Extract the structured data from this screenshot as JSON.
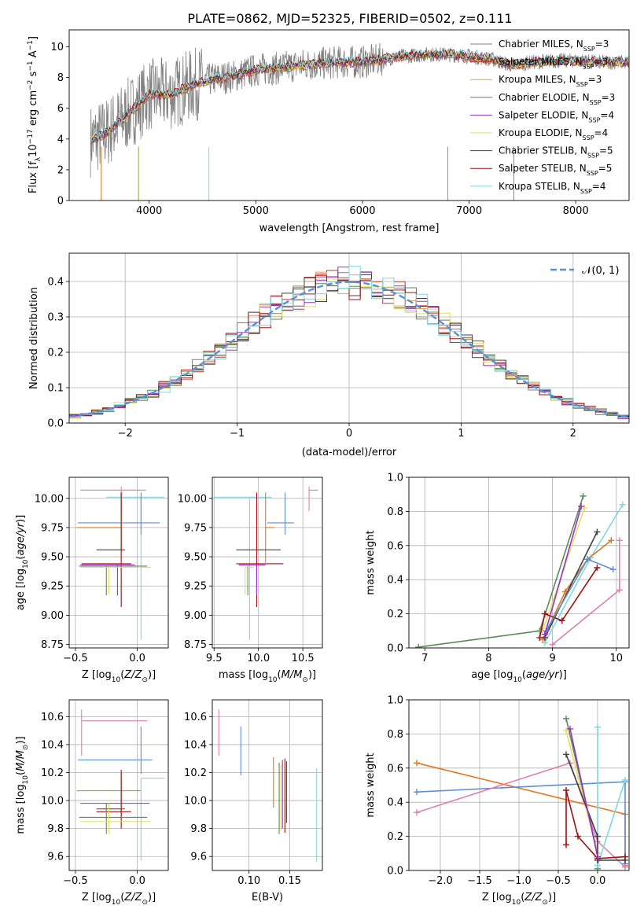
{
  "figure": {
    "title": "PLATE=0862, MJD=52325, FIBERID=0502, z=0.111"
  },
  "models": [
    {
      "name": "Chabrier MILES",
      "nssp": "3",
      "color": "#808080"
    },
    {
      "name": "Salpeter MILES",
      "nssp": "3",
      "color": "#c0392b"
    },
    {
      "name": "Kroupa MILES",
      "nssp": "3",
      "color": "#e6a03c"
    },
    {
      "name": "Chabrier ELODIE",
      "nssp": "3",
      "color": "#5a8a5a"
    },
    {
      "name": "Salpeter ELODIE",
      "nssp": "4",
      "color": "#9b30c8"
    },
    {
      "name": "Kroupa ELODIE",
      "nssp": "4",
      "color": "#e0e060"
    },
    {
      "name": "Chabrier STELIB",
      "nssp": "5",
      "color": "#404040"
    },
    {
      "name": "Salpeter STELIB",
      "nssp": "5",
      "color": "#a01010"
    },
    {
      "name": "Kroupa STELIB",
      "nssp": "4",
      "color": "#7fd8e0"
    }
  ],
  "chart_data": [
    {
      "id": "spectrum",
      "type": "line",
      "xlabel": "wavelength [Angstrom, rest frame]",
      "ylabel_parts": [
        "Flux [f",
        "λ",
        "10",
        "−17",
        " erg cm",
        "−2",
        " s",
        "−1",
        " A",
        "−1",
        "]"
      ],
      "xlim": [
        3250,
        8500
      ],
      "ylim": [
        0,
        11.1
      ],
      "xticks": [
        4000,
        5000,
        6000,
        7000,
        8000
      ],
      "yticks": [
        0,
        2,
        4,
        6,
        8,
        10
      ],
      "legend_placement": "right",
      "continuum": {
        "x": [
          3450,
          3600,
          3800,
          4000,
          4200,
          4400,
          4600,
          4800,
          5000,
          5200,
          5400,
          5600,
          5800,
          6000,
          6200,
          6400,
          6600,
          6800,
          7000,
          7200,
          7400,
          7600,
          7800,
          8000,
          8200,
          8400
        ],
        "y": [
          3.9,
          4.4,
          5.6,
          6.9,
          6.9,
          7.5,
          7.9,
          8.1,
          8.5,
          8.6,
          8.8,
          8.9,
          9.0,
          9.0,
          9.2,
          9.4,
          9.5,
          9.5,
          9.4,
          9.2,
          8.8,
          9.0,
          9.1,
          9.1,
          9.0,
          9.0
        ]
      }
    },
    {
      "id": "residuals",
      "type": "line",
      "xlabel": "(data-model)/error",
      "ylabel": "Normed distribution",
      "xlim": [
        -2.5,
        2.5
      ],
      "ylim": [
        0,
        0.48
      ],
      "xticks": [
        -2,
        -1,
        0,
        1,
        2
      ],
      "yticks": [
        0.0,
        0.1,
        0.2,
        0.3,
        0.4
      ],
      "grid": true,
      "legend_label": "𝒩(0, 1)",
      "legend_placement": "top-right",
      "gaussian_color": "#5b8fd6"
    },
    {
      "id": "age_vs_Z",
      "type": "scatter",
      "xlabel": "Z [log10(Z/Z⊙)]",
      "ylabel": "age  [log10(age/yr)]",
      "xlim": [
        -0.55,
        0.25
      ],
      "ylim": [
        8.72,
        10.18
      ],
      "xticks": [
        -0.5,
        0.0
      ],
      "yticks": [
        8.75,
        9.0,
        9.25,
        9.5,
        9.75,
        10.0
      ],
      "grid": true,
      "points": [
        {
          "x": 0.03,
          "y": 10.01,
          "xerr": [
            0.28,
            0.19
          ],
          "yerr": [
            1.22,
            0.0
          ],
          "c": "#7fd8e0"
        },
        {
          "x": -0.13,
          "y": 10.07,
          "xerr": [
            0.33,
            0.2
          ],
          "yerr": [
            0.18,
            0.03
          ],
          "c": "#e07fb0"
        },
        {
          "x": 0.03,
          "y": 9.79,
          "xerr": [
            0.51,
            0.15
          ],
          "yerr": [
            0.1,
            0.26
          ],
          "c": "#5b8fd6"
        },
        {
          "x": -0.13,
          "y": 9.75,
          "xerr": [
            0.36,
            0.0
          ],
          "yerr": [
            0.2,
            0.3
          ],
          "c": "#e07820"
        },
        {
          "x": -0.2,
          "y": 9.56,
          "xerr": [
            0.13,
            0.1
          ],
          "yerr": [
            0.0,
            0.0
          ],
          "c": "#404040"
        },
        {
          "x": -0.13,
          "y": 9.44,
          "xerr": [
            0.32,
            0.08
          ],
          "yerr": [
            0.37,
            0.61
          ],
          "c": "#a01010"
        },
        {
          "x": -0.16,
          "y": 9.43,
          "xerr": [
            0.3,
            0.14
          ],
          "yerr": [
            0.26,
            0.0
          ],
          "c": "#9b30c8"
        },
        {
          "x": -0.25,
          "y": 9.42,
          "xerr": [
            0.22,
            0.33
          ],
          "yerr": [
            0.25,
            0.0
          ],
          "c": "#5a8a5a"
        },
        {
          "x": -0.23,
          "y": 9.41,
          "xerr": [
            0.23,
            0.34
          ],
          "yerr": [
            0.23,
            0.0
          ],
          "c": "#e0e060"
        }
      ]
    },
    {
      "id": "age_vs_mass",
      "type": "scatter",
      "xlabel": "mass [log10(M/M⊙)]",
      "xlim": [
        9.48,
        10.72
      ],
      "ylim": [
        8.72,
        10.18
      ],
      "xticks": [
        9.5,
        10.0,
        10.5
      ],
      "yticks": [
        8.75,
        9.0,
        9.25,
        9.5,
        9.75,
        10.0
      ],
      "grid": true,
      "points": [
        {
          "x": 9.9,
          "y": 10.01,
          "xerr": [
            0.4,
            0.25
          ],
          "yerr": [
            1.22,
            0.0
          ],
          "c": "#7fd8e0"
        },
        {
          "x": 10.57,
          "y": 10.07,
          "xerr": [
            0.0,
            0.1
          ],
          "yerr": [
            0.18,
            0.03
          ],
          "c": "#e07fb0"
        },
        {
          "x": 10.3,
          "y": 9.79,
          "xerr": [
            0.2,
            0.1
          ],
          "yerr": [
            0.1,
            0.26
          ],
          "c": "#5b8fd6"
        },
        {
          "x": 10.08,
          "y": 9.75,
          "xerr": [
            0.0,
            0.1
          ],
          "yerr": [
            0.3,
            0.3
          ],
          "c": "#e07820"
        },
        {
          "x": 9.98,
          "y": 9.56,
          "xerr": [
            0.23,
            0.27
          ],
          "yerr": [
            0.0,
            0.0
          ],
          "c": "#404040"
        },
        {
          "x": 9.98,
          "y": 9.44,
          "xerr": [
            0.23,
            0.3
          ],
          "yerr": [
            0.37,
            0.61
          ],
          "c": "#a01010"
        },
        {
          "x": 9.98,
          "y": 9.43,
          "xerr": [
            0.2,
            0.1
          ],
          "yerr": [
            0.26,
            0.0
          ],
          "c": "#9b30c8"
        },
        {
          "x": 9.88,
          "y": 9.42,
          "xerr": [
            0.0,
            0.0
          ],
          "yerr": [
            0.25,
            0.0
          ],
          "c": "#5a8a5a"
        },
        {
          "x": 9.85,
          "y": 9.41,
          "xerr": [
            0.0,
            0.1
          ],
          "yerr": [
            0.23,
            0.0
          ],
          "c": "#e0e060"
        }
      ]
    },
    {
      "id": "mass_weight_vs_age",
      "type": "line",
      "xlabel": "age  [log10(age/yr)]",
      "ylabel": "mass weight",
      "xlim": [
        6.75,
        10.2
      ],
      "ylim": [
        0,
        1.0
      ],
      "xticks": [
        7,
        8,
        9,
        10
      ],
      "yticks": [
        0.0,
        0.2,
        0.4,
        0.6,
        0.8,
        1.0
      ],
      "grid": true,
      "series": [
        {
          "c": "#5a8a5a",
          "x": [
            6.9,
            8.8,
            9.48
          ],
          "y": [
            0.005,
            0.1,
            0.89
          ]
        },
        {
          "c": "#7fd8e0",
          "x": [
            8.88,
            9.6,
            10.1
          ],
          "y": [
            0.03,
            0.53,
            0.84
          ]
        },
        {
          "c": "#e0e060",
          "x": [
            8.85,
            9.5
          ],
          "y": [
            0.1,
            0.82
          ]
        },
        {
          "c": "#e07fb0",
          "x": [
            9.0,
            10.05,
            10.05
          ],
          "y": [
            0.02,
            0.34,
            0.63
          ]
        },
        {
          "c": "#e07820",
          "x": [
            8.85,
            9.2,
            9.55,
            9.92
          ],
          "y": [
            0.05,
            0.33,
            0.52,
            0.63
          ]
        },
        {
          "c": "#404040",
          "x": [
            8.88,
            9.7
          ],
          "y": [
            0.06,
            0.68
          ]
        },
        {
          "c": "#a01010",
          "x": [
            8.8,
            8.88,
            9.15,
            9.7
          ],
          "y": [
            0.06,
            0.2,
            0.16,
            0.47
          ]
        },
        {
          "c": "#5b8fd6",
          "x": [
            8.9,
            9.55,
            9.95
          ],
          "y": [
            0.1,
            0.52,
            0.46
          ]
        },
        {
          "c": "#9b30c8",
          "x": [
            8.88,
            9.45
          ],
          "y": [
            0.08,
            0.83
          ]
        }
      ]
    },
    {
      "id": "mass_vs_Z",
      "type": "scatter",
      "xlabel": "Z [log10(Z/Z⊙)]",
      "ylabel": "mass [log10(M/M⊙)]",
      "xlim": [
        -0.55,
        0.25
      ],
      "ylim": [
        9.5,
        10.72
      ],
      "xticks": [
        -0.5,
        0.0
      ],
      "yticks": [
        9.6,
        9.8,
        10.0,
        10.2,
        10.4,
        10.6
      ],
      "grid": true,
      "points": [
        {
          "x": -0.45,
          "y": 10.57,
          "xerr": [
            0.0,
            0.53
          ],
          "yerr": [
            0.25,
            0.08
          ],
          "c": "#e07fb0"
        },
        {
          "x": 0.03,
          "y": 10.29,
          "xerr": [
            0.51,
            0.09
          ],
          "yerr": [
            0.1,
            0.24
          ],
          "c": "#5b8fd6"
        },
        {
          "x": 0.03,
          "y": 10.16,
          "xerr": [
            0.0,
            0.19
          ],
          "yerr": [
            0.59,
            0.0
          ],
          "c": "#7fd8e0"
        },
        {
          "x": -0.13,
          "y": 10.07,
          "xerr": [
            0.36,
            0.16
          ],
          "yerr": [
            0.2,
            0.13
          ],
          "c": "#e07820"
        },
        {
          "x": -0.16,
          "y": 9.98,
          "xerr": [
            0.3,
            0.26
          ],
          "yerr": [
            0.0,
            0.0
          ],
          "c": "#9b30c8"
        },
        {
          "x": -0.2,
          "y": 9.94,
          "xerr": [
            0.13,
            0.1
          ],
          "yerr": [
            0.0,
            0.0
          ],
          "c": "#404040"
        },
        {
          "x": -0.13,
          "y": 9.92,
          "xerr": [
            0.2,
            0.08
          ],
          "yerr": [
            0.12,
            0.3
          ],
          "c": "#a01010"
        },
        {
          "x": -0.25,
          "y": 9.88,
          "xerr": [
            0.22,
            0.33
          ],
          "yerr": [
            0.12,
            0.1
          ],
          "c": "#5a8a5a"
        },
        {
          "x": -0.23,
          "y": 9.85,
          "xerr": [
            0.23,
            0.34
          ],
          "yerr": [
            0.09,
            0.13
          ],
          "c": "#e0e060"
        }
      ]
    },
    {
      "id": "mass_vs_ebv",
      "type": "scatter",
      "xlabel": "E(B-V)",
      "xlim": [
        0.055,
        0.19
      ],
      "ylim": [
        9.5,
        10.72
      ],
      "xticks": [
        0.1,
        0.15
      ],
      "yticks": [
        9.6,
        9.8,
        10.0,
        10.2,
        10.4,
        10.6
      ],
      "grid": true,
      "points": [
        {
          "x": 0.063,
          "y": 10.5,
          "xerr": [
            0,
            0
          ],
          "yerr": [
            0.18,
            0.15
          ],
          "c": "#e07fb0"
        },
        {
          "x": 0.09,
          "y": 10.35,
          "xerr": [
            0,
            0
          ],
          "yerr": [
            0.17,
            0.18
          ],
          "c": "#5b8fd6"
        },
        {
          "x": 0.13,
          "y": 10.13,
          "xerr": [
            0,
            0
          ],
          "yerr": [
            0.18,
            0.18
          ],
          "c": "#e07820"
        },
        {
          "x": 0.137,
          "y": 10.0,
          "xerr": [
            0,
            0
          ],
          "yerr": [
            0.24,
            0.27
          ],
          "c": "#5a8a5a"
        },
        {
          "x": 0.139,
          "y": 10.0,
          "xerr": [
            0,
            0
          ],
          "yerr": [
            0.22,
            0.26
          ],
          "c": "#e0e060"
        },
        {
          "x": 0.141,
          "y": 10.02,
          "xerr": [
            0,
            0
          ],
          "yerr": [
            0.22,
            0.27
          ],
          "c": "#9b30c8"
        },
        {
          "x": 0.144,
          "y": 10.03,
          "xerr": [
            0,
            0
          ],
          "yerr": [
            0.26,
            0.27
          ],
          "c": "#a01010"
        },
        {
          "x": 0.146,
          "y": 10.08,
          "xerr": [
            0,
            0
          ],
          "yerr": [
            0.24,
            0.2
          ],
          "c": "#404040"
        },
        {
          "x": 0.183,
          "y": 9.89,
          "xerr": [
            0,
            0
          ],
          "yerr": [
            0.33,
            0.34
          ],
          "c": "#7fd8e0"
        }
      ]
    },
    {
      "id": "mass_weight_vs_Z",
      "type": "line",
      "xlabel": "Z [log10(Z/Z⊙)]",
      "ylabel": "mass weight",
      "xlim": [
        -2.4,
        0.4
      ],
      "ylim": [
        0,
        1.0
      ],
      "xticks": [
        -2.0,
        -1.5,
        -1.0,
        -0.5,
        0.0
      ],
      "yticks": [
        0.0,
        0.2,
        0.4,
        0.6,
        0.8,
        1.0
      ],
      "grid": true,
      "series": [
        {
          "c": "#e07820",
          "x": [
            -2.3,
            0.35,
            0.35
          ],
          "y": [
            0.63,
            0.33,
            0.03
          ]
        },
        {
          "c": "#5b8fd6",
          "x": [
            -2.3,
            0.35,
            0.35
          ],
          "y": [
            0.46,
            0.52,
            0.04
          ]
        },
        {
          "c": "#e07fb0",
          "x": [
            -2.3,
            -0.35,
            0.0,
            0.35
          ],
          "y": [
            0.34,
            0.63,
            0.17,
            0.02
          ]
        },
        {
          "c": "#5a8a5a",
          "x": [
            -0.4,
            0.0,
            0.0
          ],
          "y": [
            0.89,
            0.1,
            0.01
          ]
        },
        {
          "c": "#7fd8e0",
          "x": [
            0.0,
            0.0,
            0.35
          ],
          "y": [
            0.84,
            0.03,
            0.53
          ]
        },
        {
          "c": "#e0e060",
          "x": [
            -0.4,
            0.0
          ],
          "y": [
            0.82,
            0.1
          ]
        },
        {
          "c": "#404040",
          "x": [
            -0.4,
            0.0,
            0.0,
            0.35
          ],
          "y": [
            0.68,
            0.2,
            0.06,
            0.06
          ]
        },
        {
          "c": "#a01010",
          "x": [
            -0.4,
            -0.4,
            -0.25,
            0.0,
            0.35
          ],
          "y": [
            0.15,
            0.47,
            0.2,
            0.07,
            0.08
          ]
        },
        {
          "c": "#9b30c8",
          "x": [
            -0.35,
            0.0
          ],
          "y": [
            0.83,
            0.08
          ]
        }
      ]
    }
  ]
}
